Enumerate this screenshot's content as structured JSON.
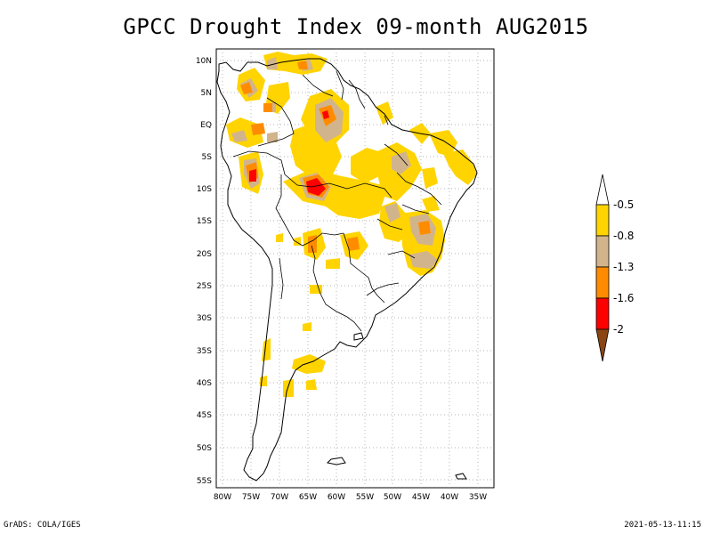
{
  "title": "GPCC Drought Index 09-month AUG2015",
  "footer": {
    "left": "GrADS: COLA/IGES",
    "right": "2021-05-13-11:15"
  },
  "axes": {
    "lat_labels": [
      "10N",
      "5N",
      "EQ",
      "5S",
      "10S",
      "15S",
      "20S",
      "25S",
      "30S",
      "35S",
      "40S",
      "45S",
      "50S",
      "55S"
    ],
    "lon_labels": [
      "80W",
      "75W",
      "70W",
      "65W",
      "60W",
      "55W",
      "50W",
      "45W",
      "40W",
      "35W"
    ],
    "lat_range": [
      11.5,
      -56.5
    ],
    "lon_range": [
      -81,
      -33
    ]
  },
  "legend": {
    "levels": [
      "-0.5",
      "-0.8",
      "-1.3",
      "-1.6",
      "-2"
    ],
    "colors": [
      "#ffd400",
      "#d2b48c",
      "#ff8c00",
      "#ff0000",
      "#8b4513"
    ]
  }
}
